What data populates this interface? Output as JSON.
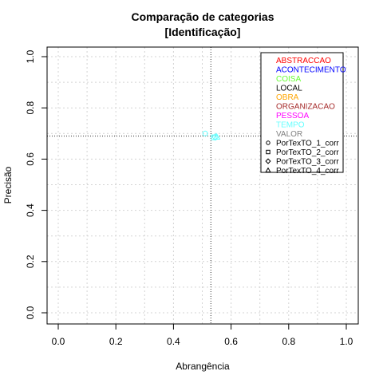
{
  "chart_data": {
    "type": "scatter",
    "title": "Comparação de categorias",
    "subtitle": "[Identificação]",
    "xlabel": "Abrangência",
    "ylabel": "Precisão",
    "xlim": [
      0,
      1
    ],
    "ylim": [
      0,
      1
    ],
    "x_ticks": [
      "0.0",
      "0.2",
      "0.4",
      "0.6",
      "0.8",
      "1.0"
    ],
    "y_ticks": [
      "0.0",
      "0.2",
      "0.4",
      "0.6",
      "0.8",
      "1.0"
    ],
    "grid": true,
    "legend_position": "top-right",
    "reference_lines": {
      "x": 0.53,
      "y": 0.69
    },
    "categories": [
      {
        "label": "ABSTRACCAO",
        "color": "#ff0000"
      },
      {
        "label": "ACONTECIMENTO",
        "color": "#0000ff"
      },
      {
        "label": "COISA",
        "color": "#66ff33"
      },
      {
        "label": "LOCAL",
        "color": "#000000"
      },
      {
        "label": "OBRA",
        "color": "#ffa500"
      },
      {
        "label": "ORGANIZACAO",
        "color": "#a52a2a"
      },
      {
        "label": "PESSOA",
        "color": "#ff00ff"
      },
      {
        "label": "TEMPO",
        "color": "#66ffff"
      },
      {
        "label": "VALOR",
        "color": "#808080"
      }
    ],
    "markers": [
      {
        "label": "PorTexTO_1_corr",
        "shape": "circle"
      },
      {
        "label": "PorTexTO_2_corr",
        "shape": "square"
      },
      {
        "label": "PorTexTO_3_corr",
        "shape": "diamond"
      },
      {
        "label": "PorTexTO_4_corr",
        "shape": "triangle"
      }
    ],
    "points": [
      {
        "category": "TEMPO",
        "marker": "circle",
        "x": 0.51,
        "y": 0.7
      },
      {
        "category": "TEMPO",
        "marker": "square",
        "x": 0.54,
        "y": 0.685
      },
      {
        "category": "TEMPO",
        "marker": "diamond",
        "x": 0.545,
        "y": 0.686
      },
      {
        "category": "TEMPO",
        "marker": "triangle",
        "x": 0.55,
        "y": 0.687
      }
    ]
  }
}
